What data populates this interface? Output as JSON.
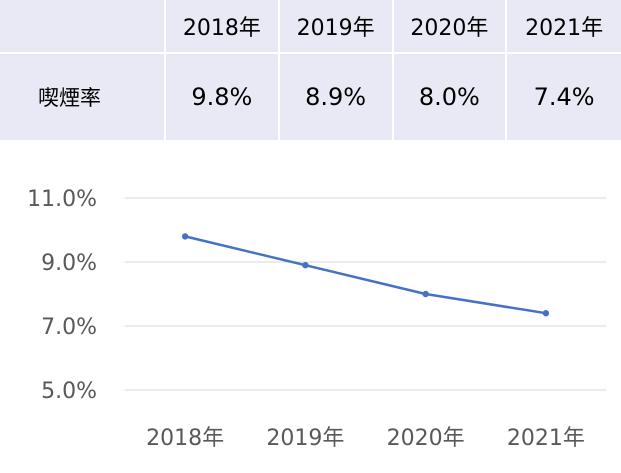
{
  "table": {
    "headers": [
      "2018年",
      "2019年",
      "2020年",
      "2021年"
    ],
    "row_label": "喫煙率",
    "values": [
      "9.8%",
      "8.9%",
      "8.0%",
      "7.4%"
    ]
  },
  "colors": {
    "table_fill": "#e8e9f4",
    "line": "#4472c4",
    "grid": "#d9d9d9",
    "tick_text": "#595959"
  },
  "chart_data": {
    "type": "line",
    "categories": [
      "2018年",
      "2019年",
      "2020年",
      "2021年"
    ],
    "series": [
      {
        "values": [
          9.8,
          8.9,
          8.0,
          7.4
        ]
      }
    ],
    "ylim": [
      5.0,
      11.0
    ],
    "yticks": [
      5.0,
      7.0,
      9.0,
      11.0
    ],
    "ytick_labels": [
      "5.0%",
      "7.0%",
      "9.0%",
      "11.0%"
    ],
    "grid": true,
    "legend": "none",
    "markers": true
  }
}
